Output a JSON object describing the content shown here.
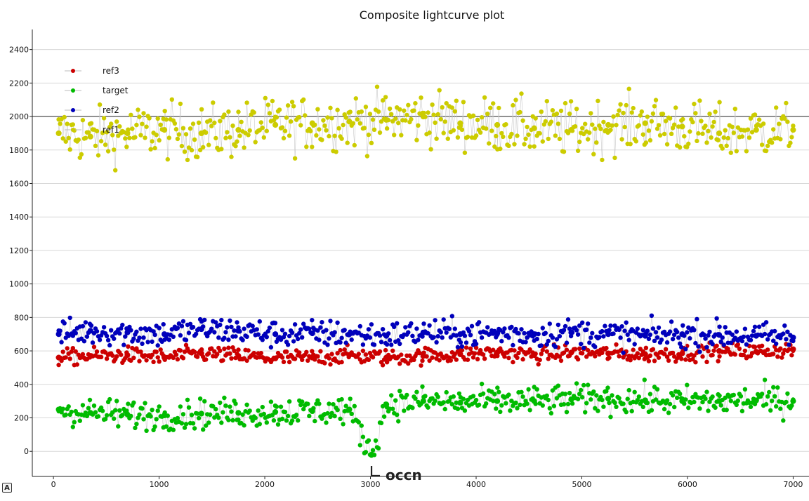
{
  "chart_data": {
    "type": "scatter",
    "title": "Composite lightcurve plot",
    "xlabel": "",
    "ylabel": "",
    "xlim": [
      -200,
      7150
    ],
    "ylim": [
      -150,
      2520
    ],
    "x_ticks": [
      0,
      1000,
      2000,
      3000,
      4000,
      5000,
      6000,
      7000
    ],
    "y_ticks": [
      0,
      200,
      400,
      600,
      800,
      1000,
      1200,
      1400,
      1600,
      1800,
      2000,
      2200,
      2400
    ],
    "grid": "horizontal",
    "reference_line_y": 2000,
    "legend_position": "top-left",
    "series": [
      {
        "name": "ref3",
        "color": "#cc0000",
        "x": [
          50,
          350,
          700,
          1050,
          1400,
          1750,
          2100,
          2450,
          2800,
          3150,
          3500,
          3850,
          4200,
          4550,
          4900,
          5250,
          5600,
          5950,
          6300,
          6650,
          7000
        ],
        "y": [
          560,
          570,
          575,
          560,
          585,
          570,
          555,
          560,
          575,
          560,
          570,
          580,
          590,
          575,
          590,
          585,
          580,
          585,
          600,
          595,
          610
        ]
      },
      {
        "name": "target",
        "color": "#00bb00",
        "x": [
          50,
          350,
          700,
          1050,
          1400,
          1750,
          2100,
          2450,
          2800,
          3010,
          3150,
          3500,
          3850,
          4200,
          4550,
          4900,
          5250,
          5600,
          5950,
          6300,
          6650,
          7000
        ],
        "y": [
          250,
          230,
          220,
          215,
          225,
          230,
          235,
          240,
          250,
          -20,
          280,
          300,
          290,
          300,
          300,
          310,
          315,
          305,
          300,
          300,
          305,
          300
        ]
      },
      {
        "name": "ref2",
        "color": "#0000bb",
        "x": [
          50,
          350,
          700,
          1050,
          1400,
          1750,
          2100,
          2450,
          2800,
          3150,
          3500,
          3850,
          4200,
          4550,
          4900,
          5250,
          5600,
          5950,
          6300,
          6650,
          7000
        ],
        "y": [
          700,
          720,
          710,
          700,
          730,
          720,
          700,
          705,
          700,
          690,
          710,
          700,
          705,
          700,
          710,
          700,
          690,
          700,
          695,
          690,
          680
        ]
      },
      {
        "name": "ref1",
        "color": "#cccc00",
        "x": [
          50,
          350,
          700,
          1050,
          1400,
          1750,
          2100,
          2450,
          2800,
          3150,
          3500,
          3850,
          4200,
          4550,
          4900,
          5250,
          5600,
          5950,
          6300,
          6650,
          7000
        ],
        "y": [
          1900,
          1880,
          1900,
          1920,
          1900,
          1920,
          1950,
          1960,
          1970,
          1980,
          2000,
          1960,
          1950,
          1930,
          1920,
          1950,
          1960,
          1940,
          1900,
          1920,
          1920
        ]
      }
    ],
    "annotations": [
      {
        "text": "occn",
        "x": 3010,
        "y": -20
      }
    ],
    "corner_badge": "A"
  }
}
